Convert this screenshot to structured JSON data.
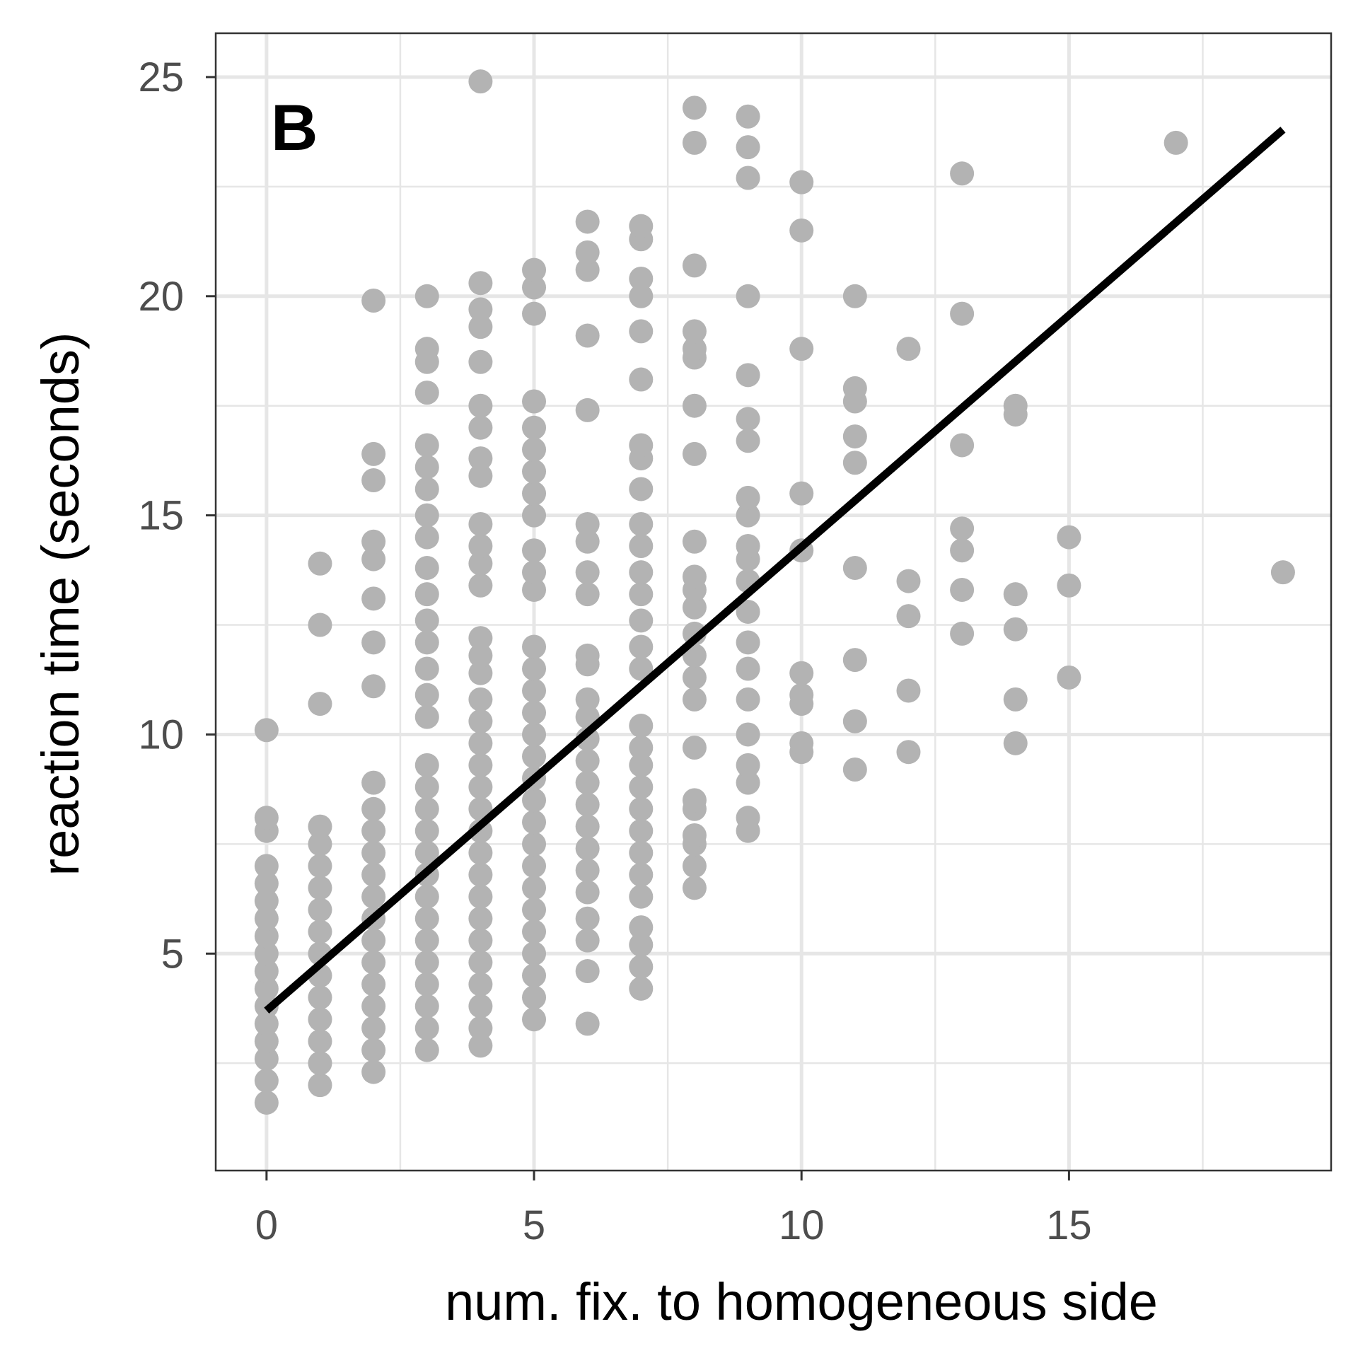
{
  "chart_data": {
    "type": "scatter",
    "panel_label": "B",
    "xlabel": "num. fix. to homogeneous side",
    "ylabel": "reaction time (seconds)",
    "xlim": [
      -0.95,
      19.9
    ],
    "ylim": [
      0.05,
      26.0
    ],
    "x_ticks": [
      0,
      5,
      10,
      15
    ],
    "y_ticks": [
      5,
      10,
      15,
      20,
      25
    ],
    "x_minor_gridlines": [
      2.5,
      7.5,
      12.5,
      17.5
    ],
    "y_minor_gridlines": [
      2.5,
      7.5,
      12.5,
      17.5,
      22.5
    ],
    "grid": true,
    "legend": "none",
    "point_color": "#b3b3b3",
    "line_color": "#000000",
    "panel_border_color": "#333333",
    "grid_color": "#e6e6e6",
    "fit_line": {
      "x": [
        0,
        19
      ],
      "y": [
        3.7,
        23.8
      ]
    },
    "points": [
      {
        "x": 0,
        "y": [
          1.6,
          2.1,
          2.6,
          3.0,
          3.4,
          3.8,
          4.2,
          4.6,
          5.0,
          5.4,
          5.8,
          6.2,
          6.6,
          7.0,
          7.8,
          8.1,
          10.1
        ]
      },
      {
        "x": 1,
        "y": [
          2.0,
          2.5,
          3.0,
          3.5,
          4.0,
          4.5,
          5.0,
          5.5,
          6.0,
          6.5,
          7.0,
          7.5,
          7.9,
          10.7,
          12.5,
          13.9
        ]
      },
      {
        "x": 2,
        "y": [
          2.3,
          2.8,
          3.3,
          3.8,
          4.3,
          4.8,
          5.3,
          5.8,
          6.3,
          6.8,
          7.3,
          7.8,
          8.3,
          8.9,
          11.1,
          12.1,
          13.1,
          14.0,
          14.4,
          15.8,
          16.4,
          19.9
        ]
      },
      {
        "x": 3,
        "y": [
          2.8,
          3.3,
          3.8,
          4.3,
          4.8,
          5.3,
          5.8,
          6.3,
          6.8,
          7.3,
          7.8,
          8.3,
          8.8,
          9.3,
          10.4,
          10.9,
          11.5,
          12.1,
          12.6,
          13.2,
          13.8,
          14.5,
          15.0,
          15.6,
          16.1,
          16.6,
          17.8,
          18.5,
          18.8,
          20.0
        ]
      },
      {
        "x": 4,
        "y": [
          2.9,
          3.3,
          3.8,
          4.3,
          4.8,
          5.3,
          5.8,
          6.3,
          6.8,
          7.3,
          7.8,
          8.3,
          8.8,
          9.3,
          9.8,
          10.3,
          10.8,
          11.4,
          11.8,
          12.2,
          13.4,
          13.9,
          14.3,
          14.8,
          15.9,
          16.3,
          17.0,
          17.5,
          18.5,
          19.3,
          19.7,
          20.3,
          24.9
        ]
      },
      {
        "x": 5,
        "y": [
          3.5,
          4.0,
          4.5,
          5.0,
          5.5,
          6.0,
          6.5,
          7.0,
          7.5,
          8.0,
          8.5,
          9.0,
          9.5,
          10.0,
          10.5,
          11.0,
          11.5,
          12.0,
          13.3,
          13.7,
          14.2,
          15.0,
          15.5,
          16.0,
          16.5,
          17.0,
          17.6,
          19.6,
          20.2,
          20.6
        ]
      },
      {
        "x": 6,
        "y": [
          3.4,
          4.6,
          5.3,
          5.8,
          6.4,
          6.9,
          7.4,
          7.9,
          8.4,
          8.9,
          9.4,
          9.9,
          10.4,
          10.8,
          11.6,
          11.8,
          13.2,
          13.7,
          14.4,
          14.8,
          17.4,
          19.1,
          20.6,
          21.0,
          21.7
        ]
      },
      {
        "x": 7,
        "y": [
          4.2,
          4.7,
          5.2,
          5.6,
          6.3,
          6.8,
          7.3,
          7.8,
          8.3,
          8.8,
          9.3,
          9.7,
          10.2,
          11.5,
          12.0,
          12.6,
          13.2,
          13.7,
          14.3,
          14.8,
          15.6,
          16.3,
          16.6,
          18.1,
          19.2,
          20.0,
          20.4,
          21.3,
          21.6
        ]
      },
      {
        "x": 8,
        "y": [
          6.5,
          7.0,
          7.5,
          7.7,
          8.3,
          8.5,
          9.7,
          10.8,
          11.3,
          11.8,
          12.3,
          12.9,
          13.3,
          13.6,
          14.4,
          16.4,
          17.5,
          18.6,
          18.8,
          19.2,
          20.7,
          23.5,
          24.3
        ]
      },
      {
        "x": 9,
        "y": [
          7.8,
          8.1,
          8.9,
          9.3,
          10.0,
          10.8,
          11.5,
          12.1,
          12.8,
          13.5,
          14.0,
          14.3,
          15.0,
          15.4,
          16.7,
          17.2,
          18.2,
          20.0,
          22.7,
          23.4,
          24.1
        ]
      },
      {
        "x": 10,
        "y": [
          9.6,
          9.8,
          10.7,
          10.9,
          11.4,
          14.2,
          15.5,
          18.8,
          21.5,
          22.6
        ]
      },
      {
        "x": 11,
        "y": [
          9.2,
          10.3,
          11.7,
          13.8,
          16.2,
          16.8,
          17.6,
          17.9,
          20.0
        ]
      },
      {
        "x": 12,
        "y": [
          9.6,
          11.0,
          12.7,
          13.5,
          18.8
        ]
      },
      {
        "x": 13,
        "y": [
          12.3,
          13.3,
          14.2,
          14.7,
          16.6,
          19.6,
          22.8
        ]
      },
      {
        "x": 14,
        "y": [
          9.8,
          10.8,
          12.4,
          13.2,
          17.3,
          17.5
        ]
      },
      {
        "x": 15,
        "y": [
          11.3,
          13.4,
          14.5
        ]
      },
      {
        "x": 17,
        "y": [
          23.5
        ]
      },
      {
        "x": 19,
        "y": [
          13.7
        ]
      }
    ]
  }
}
